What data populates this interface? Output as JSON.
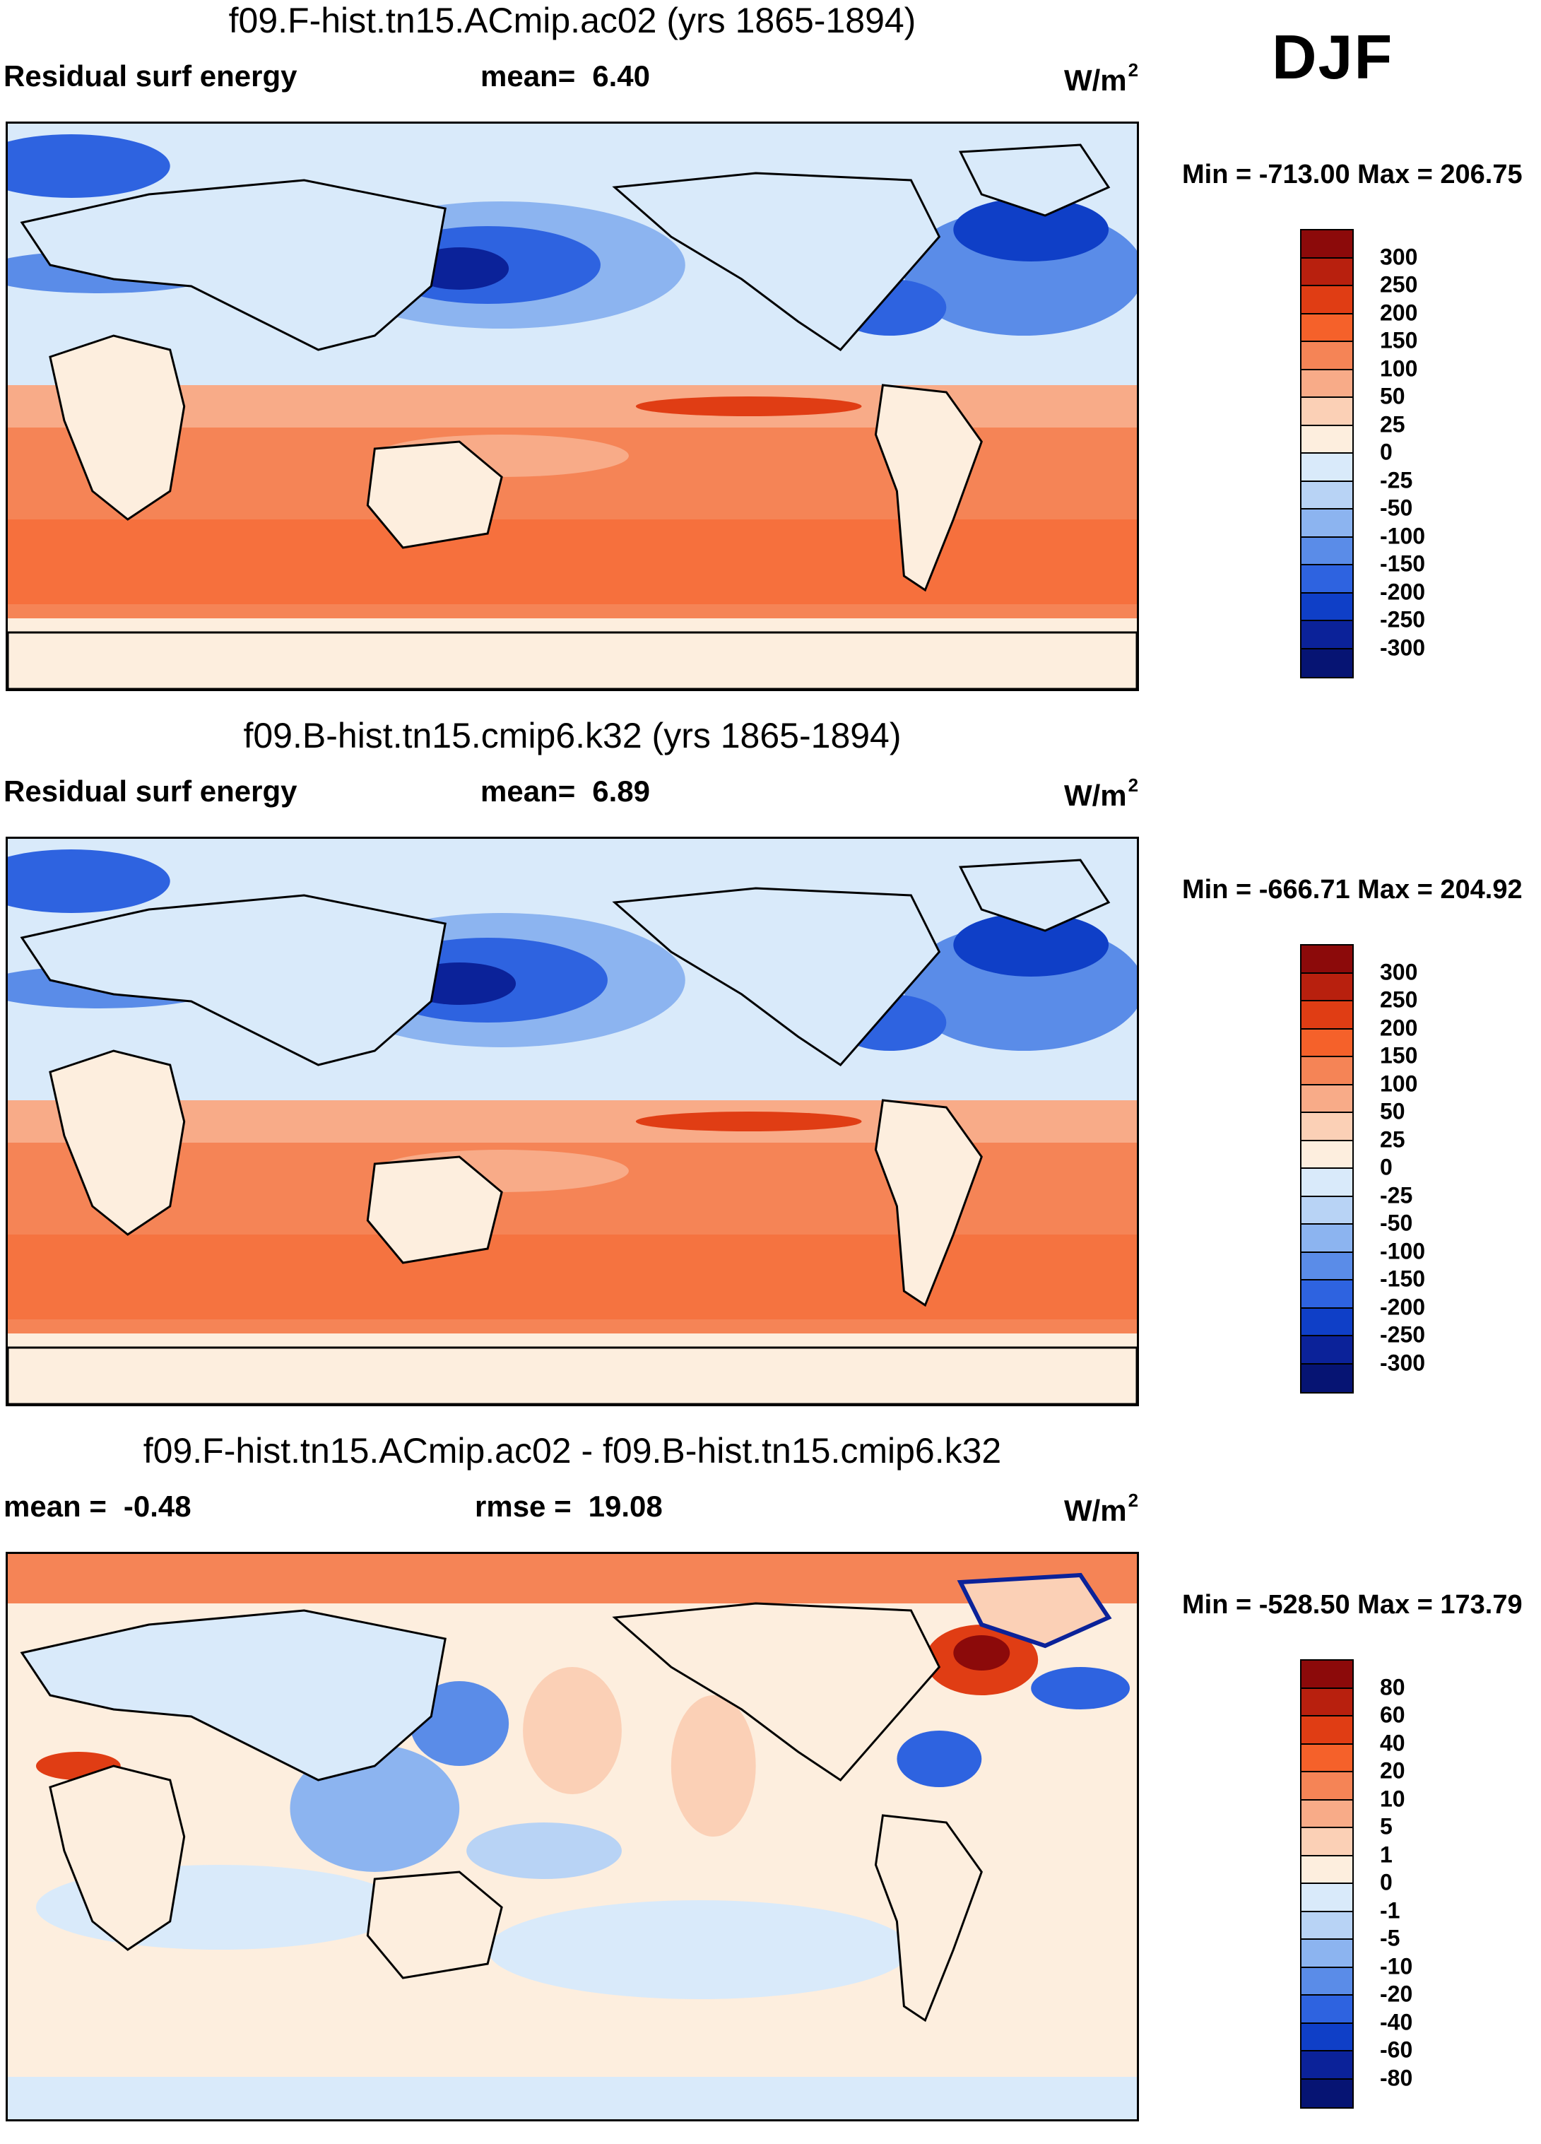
{
  "season": "DJF",
  "panels": [
    {
      "title": "f09.F-hist.tn15.ACmip.ac02 (yrs 1865-1894)",
      "left_label": "Residual surf energy",
      "stat_label": "mean=",
      "stat_value": "6.40",
      "units": "W/m",
      "units_exp": "2",
      "minmax": "Min = -713.00 Max = 206.75",
      "legend_labels": [
        "300",
        "250",
        "200",
        "150",
        "100",
        "50",
        "25",
        "0",
        "-25",
        "-50",
        "-100",
        "-150",
        "-200",
        "-250",
        "-300"
      ]
    },
    {
      "title": "f09.B-hist.tn15.cmip6.k32 (yrs 1865-1894)",
      "left_label": "Residual surf energy",
      "stat_label": "mean=",
      "stat_value": "6.89",
      "units": "W/m",
      "units_exp": "2",
      "minmax": "Min = -666.71 Max = 204.92",
      "legend_labels": [
        "300",
        "250",
        "200",
        "150",
        "100",
        "50",
        "25",
        "0",
        "-25",
        "-50",
        "-100",
        "-150",
        "-200",
        "-250",
        "-300"
      ]
    },
    {
      "title": "f09.F-hist.tn15.ACmip.ac02 - f09.B-hist.tn15.cmip6.k32",
      "left_label": "mean =",
      "left_value": "-0.48",
      "stat_label": "rmse =",
      "stat_value": "19.08",
      "units": "W/m",
      "units_exp": "2",
      "minmax": "Min = -528.50 Max = 173.79",
      "legend_labels": [
        "80",
        "60",
        "40",
        "20",
        "10",
        "5",
        "1",
        "0",
        "-1",
        "-5",
        "-10",
        "-20",
        "-40",
        "-60",
        "-80"
      ]
    }
  ],
  "palette": [
    "#8c0a0a",
    "#b8200e",
    "#e03d14",
    "#f5612a",
    "#f58456",
    "#f8ab88",
    "#fbd0b6",
    "#fdeede",
    "#d9eafa",
    "#b8d3f5",
    "#8cb4f0",
    "#5a8ce8",
    "#2e63e0",
    "#0f3fc7",
    "#0b2299",
    "#061473"
  ]
}
